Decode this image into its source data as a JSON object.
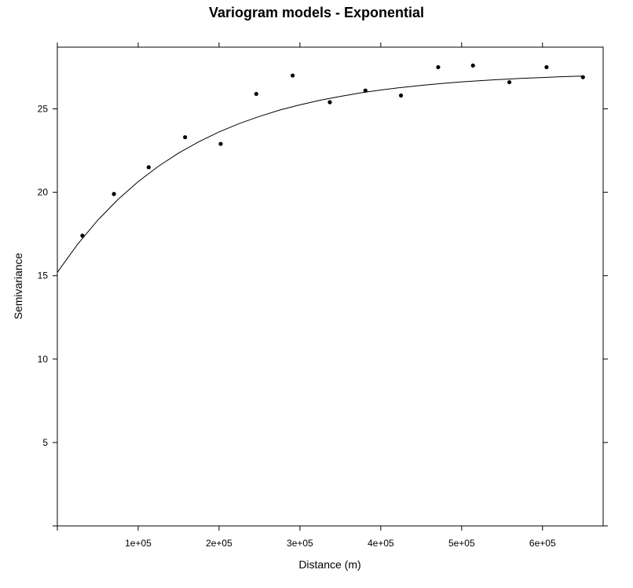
{
  "chart_data": {
    "type": "scatter",
    "title": "Variogram models - Exponential",
    "xlabel": "Distance (m)",
    "ylabel": "Semivariance",
    "xlim": [
      0,
      675000
    ],
    "ylim": [
      0,
      28.7
    ],
    "x_ticks": [
      100000,
      200000,
      300000,
      400000,
      500000,
      600000
    ],
    "x_tick_labels": [
      "1e+05",
      "2e+05",
      "3e+05",
      "4e+05",
      "5e+05",
      "6e+05"
    ],
    "y_ticks": [
      5,
      10,
      15,
      20,
      25
    ],
    "y_tick_labels": [
      "5",
      "10",
      "15",
      "20",
      "25"
    ],
    "grid": false,
    "legend": "none",
    "colors": {
      "points": "#000000",
      "line": "#000000",
      "axes": "#000000"
    },
    "series": [
      {
        "kind": "points",
        "x": [
          31000,
          70000,
          113000,
          158000,
          202000,
          246000,
          291000,
          337000,
          381000,
          425000,
          471000,
          514000,
          559000,
          605000,
          650000
        ],
        "y": [
          17.4,
          19.9,
          21.5,
          23.3,
          22.9,
          25.9,
          27.0,
          25.4,
          26.1,
          25.8,
          27.5,
          27.6,
          26.6,
          27.5,
          26.9
        ]
      },
      {
        "kind": "line",
        "model": "exponential",
        "x": [
          0,
          25000,
          50000,
          75000,
          100000,
          125000,
          150000,
          175000,
          200000,
          225000,
          250000,
          275000,
          300000,
          325000,
          350000,
          375000,
          400000,
          425000,
          450000,
          475000,
          500000,
          525000,
          550000,
          575000,
          600000,
          625000,
          650000
        ],
        "y": [
          15.2,
          16.88,
          18.33,
          19.57,
          20.64,
          21.56,
          22.35,
          23.03,
          23.62,
          24.12,
          24.55,
          24.93,
          25.24,
          25.52,
          25.75,
          25.96,
          26.13,
          26.28,
          26.41,
          26.52,
          26.62,
          26.7,
          26.77,
          26.83,
          26.88,
          26.93,
          26.97
        ]
      }
    ]
  }
}
